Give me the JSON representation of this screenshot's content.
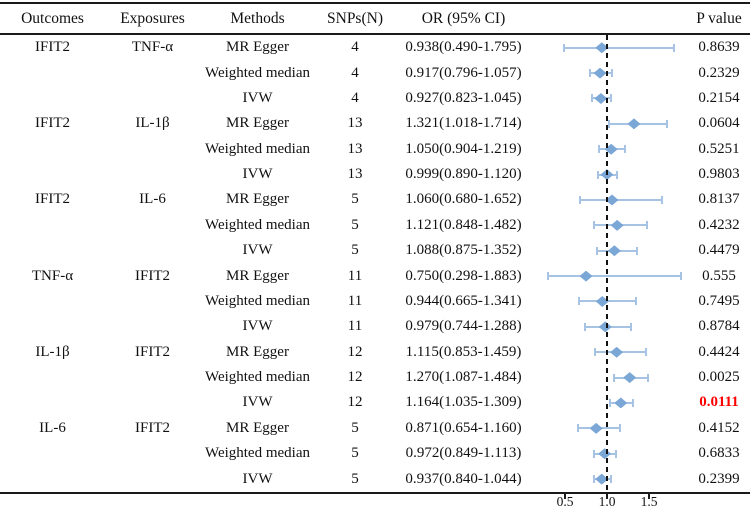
{
  "header": {
    "columns": [
      "Outcomes",
      "Exposures",
      "Methods",
      "SNPs(N)",
      "OR (95% CI)",
      "P value"
    ]
  },
  "colors": {
    "diamond": "#7ba7d7",
    "whisker": "#a6c3e4",
    "reference_line": "#111111",
    "highlight_p": "#ff0000"
  },
  "chart_data": {
    "type": "scatter",
    "subtype": "forest-plot",
    "axis": {
      "tick_values": [
        0.5,
        1.0,
        1.5
      ],
      "tick_labels": [
        "0.5",
        "1.0",
        "1.5"
      ],
      "reference_line": 1.0,
      "xlim": [
        0.11,
        1.96
      ],
      "grid": false
    },
    "rows": [
      {
        "outcome": "IFIT2",
        "exposure": "TNF-α",
        "method": "MR Egger",
        "snps": "4",
        "or_ci": "0.938(0.490-1.795)",
        "or": 0.938,
        "ci_low": 0.49,
        "ci_high": 1.795,
        "p": "0.8639",
        "p_highlight": false
      },
      {
        "outcome": "",
        "exposure": "",
        "method": "Weighted median",
        "snps": "4",
        "or_ci": "0.917(0.796-1.057)",
        "or": 0.917,
        "ci_low": 0.796,
        "ci_high": 1.057,
        "p": "0.2329",
        "p_highlight": false
      },
      {
        "outcome": "",
        "exposure": "",
        "method": "IVW",
        "snps": "4",
        "or_ci": "0.927(0.823-1.045)",
        "or": 0.927,
        "ci_low": 0.823,
        "ci_high": 1.045,
        "p": "0.2154",
        "p_highlight": false
      },
      {
        "outcome": "IFIT2",
        "exposure": "IL-1β",
        "method": "MR Egger",
        "snps": "13",
        "or_ci": "1.321(1.018-1.714)",
        "or": 1.321,
        "ci_low": 1.018,
        "ci_high": 1.714,
        "p": "0.0604",
        "p_highlight": false
      },
      {
        "outcome": "",
        "exposure": "",
        "method": "Weighted median",
        "snps": "13",
        "or_ci": "1.050(0.904-1.219)",
        "or": 1.05,
        "ci_low": 0.904,
        "ci_high": 1.219,
        "p": "0.5251",
        "p_highlight": false
      },
      {
        "outcome": "",
        "exposure": "",
        "method": "IVW",
        "snps": "13",
        "or_ci": "0.999(0.890-1.120)",
        "or": 0.999,
        "ci_low": 0.89,
        "ci_high": 1.12,
        "p": "0.9803",
        "p_highlight": false
      },
      {
        "outcome": "IFIT2",
        "exposure": "IL-6",
        "method": "MR Egger",
        "snps": "5",
        "or_ci": "1.060(0.680-1.652)",
        "or": 1.06,
        "ci_low": 0.68,
        "ci_high": 1.652,
        "p": "0.8137",
        "p_highlight": false
      },
      {
        "outcome": "",
        "exposure": "",
        "method": "Weighted median",
        "snps": "5",
        "or_ci": "1.121(0.848-1.482)",
        "or": 1.121,
        "ci_low": 0.848,
        "ci_high": 1.482,
        "p": "0.4232",
        "p_highlight": false
      },
      {
        "outcome": "",
        "exposure": "",
        "method": "IVW",
        "snps": "5",
        "or_ci": "1.088(0.875-1.352)",
        "or": 1.088,
        "ci_low": 0.875,
        "ci_high": 1.352,
        "p": "0.4479",
        "p_highlight": false
      },
      {
        "outcome": "TNF-α",
        "exposure": "IFIT2",
        "method": "MR Egger",
        "snps": "11",
        "or_ci": "0.750(0.298-1.883)",
        "or": 0.75,
        "ci_low": 0.298,
        "ci_high": 1.883,
        "p": "0.555",
        "p_highlight": false
      },
      {
        "outcome": "",
        "exposure": "",
        "method": "Weighted median",
        "snps": "11",
        "or_ci": "0.944(0.665-1.341)",
        "or": 0.944,
        "ci_low": 0.665,
        "ci_high": 1.341,
        "p": "0.7495",
        "p_highlight": false
      },
      {
        "outcome": "",
        "exposure": "",
        "method": "IVW",
        "snps": "11",
        "or_ci": "0.979(0.744-1.288)",
        "or": 0.979,
        "ci_low": 0.744,
        "ci_high": 1.288,
        "p": "0.8784",
        "p_highlight": false
      },
      {
        "outcome": "IL-1β",
        "exposure": "IFIT2",
        "method": "MR Egger",
        "snps": "12",
        "or_ci": "1.115(0.853-1.459)",
        "or": 1.115,
        "ci_low": 0.853,
        "ci_high": 1.459,
        "p": "0.4424",
        "p_highlight": false
      },
      {
        "outcome": "",
        "exposure": "",
        "method": "Weighted median",
        "snps": "12",
        "or_ci": "1.270(1.087-1.484)",
        "or": 1.27,
        "ci_low": 1.087,
        "ci_high": 1.484,
        "p": "0.0025",
        "p_highlight": false
      },
      {
        "outcome": "",
        "exposure": "",
        "method": "IVW",
        "snps": "12",
        "or_ci": "1.164(1.035-1.309)",
        "or": 1.164,
        "ci_low": 1.035,
        "ci_high": 1.309,
        "p": "0.0111",
        "p_highlight": true
      },
      {
        "outcome": "IL-6",
        "exposure": "IFIT2",
        "method": "MR Egger",
        "snps": "5",
        "or_ci": "0.871(0.654-1.160)",
        "or": 0.871,
        "ci_low": 0.654,
        "ci_high": 1.16,
        "p": "0.4152",
        "p_highlight": false
      },
      {
        "outcome": "",
        "exposure": "",
        "method": "Weighted median",
        "snps": "5",
        "or_ci": "0.972(0.849-1.113)",
        "or": 0.972,
        "ci_low": 0.849,
        "ci_high": 1.113,
        "p": "0.6833",
        "p_highlight": false
      },
      {
        "outcome": "",
        "exposure": "",
        "method": "IVW",
        "snps": "5",
        "or_ci": "0.937(0.840-1.044)",
        "or": 0.937,
        "ci_low": 0.84,
        "ci_high": 1.044,
        "p": "0.2399",
        "p_highlight": false
      }
    ]
  }
}
